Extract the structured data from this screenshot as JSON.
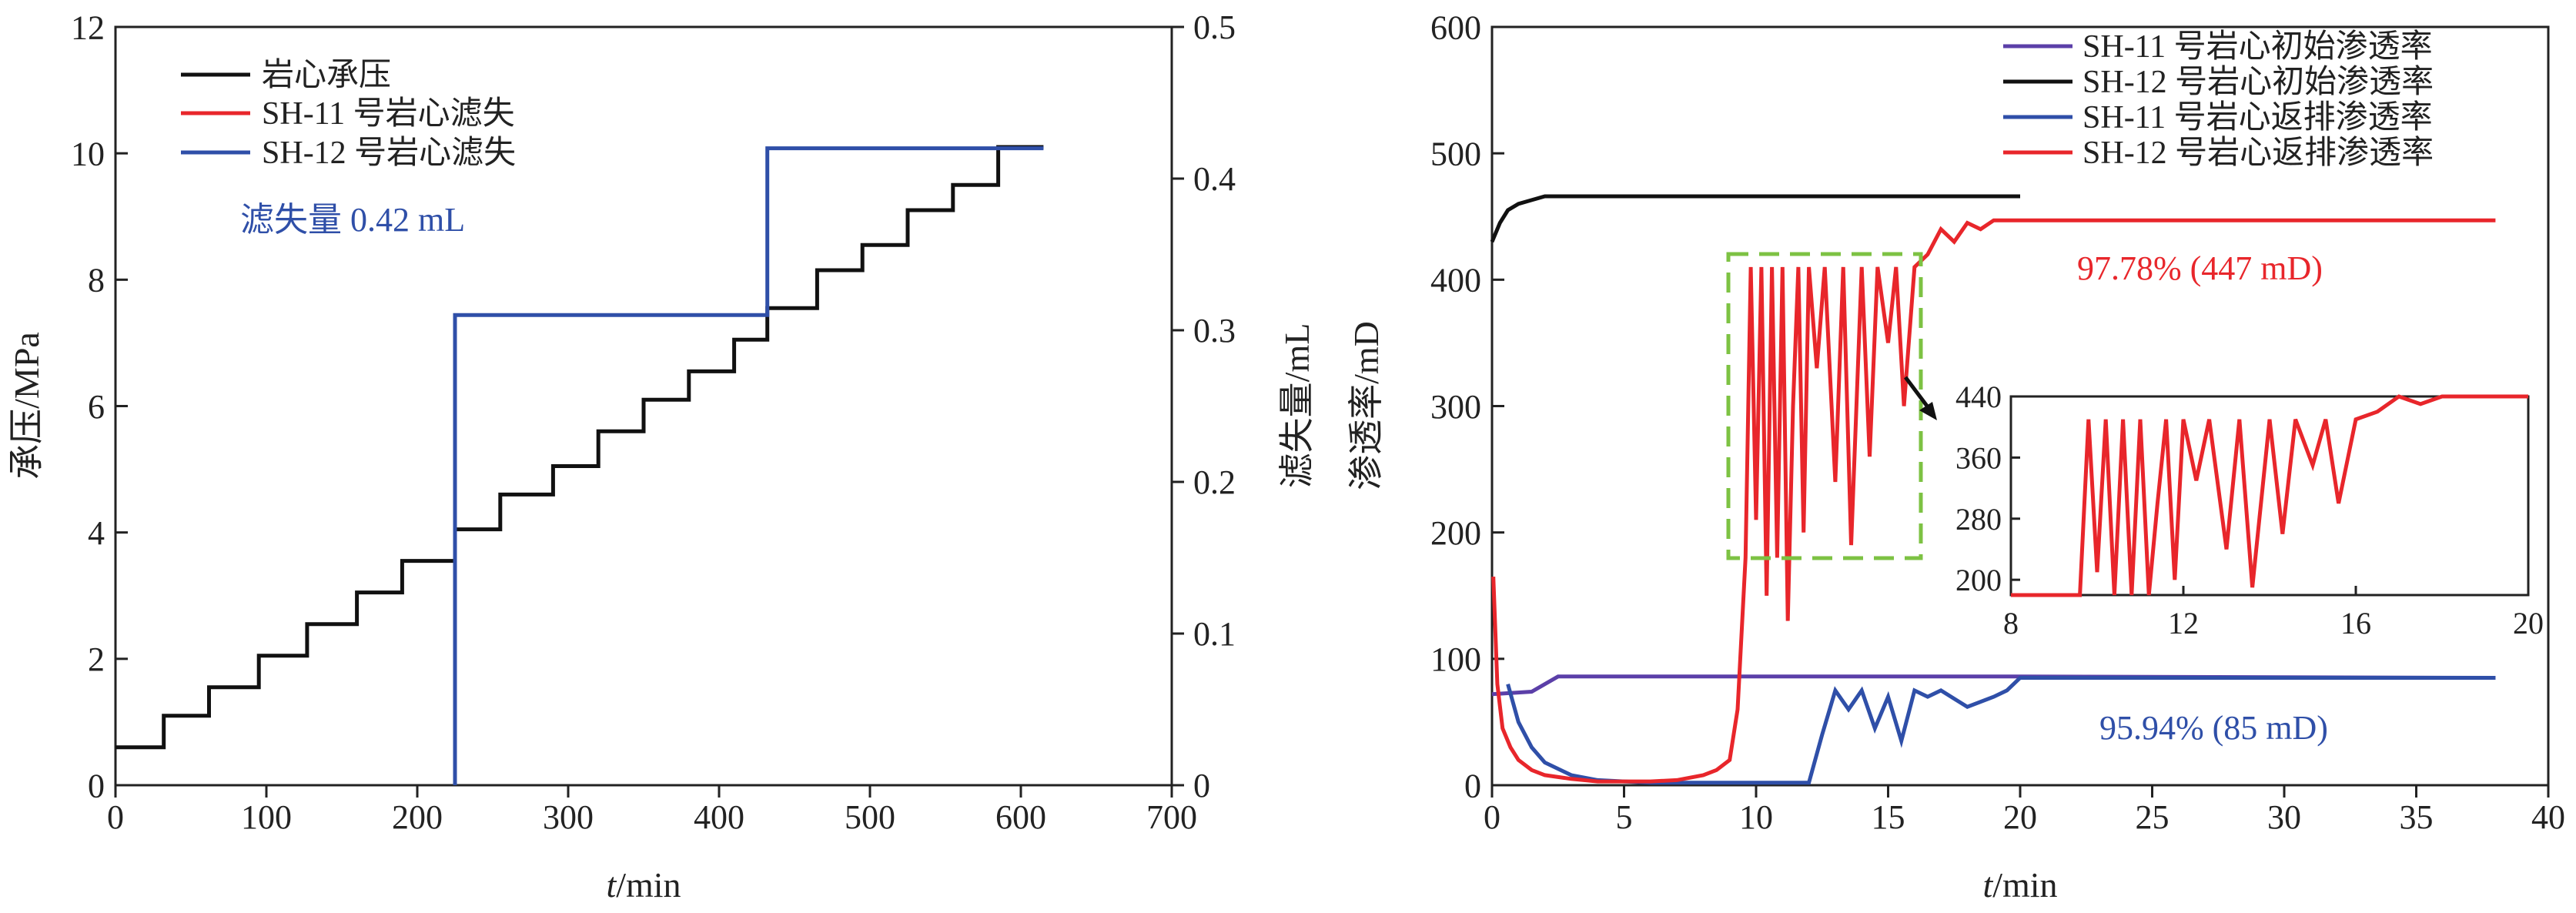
{
  "charts": {
    "left": {
      "type": "line",
      "xlabel_italic": "t",
      "xlabel_unit": "/min",
      "ylabel": "承压/MPa",
      "y2label": "滤失量/mL",
      "xlim": [
        0,
        700
      ],
      "ylim": [
        0,
        12
      ],
      "y2lim": [
        0,
        0.5
      ],
      "x_ticks": [
        "0",
        "100",
        "200",
        "300",
        "400",
        "500",
        "600",
        "700"
      ],
      "y_ticks": [
        "0",
        "2",
        "4",
        "6",
        "8",
        "10",
        "12"
      ],
      "y2_ticks": [
        "0",
        "0.1",
        "0.2",
        "0.3",
        "0.4",
        "0.5"
      ],
      "annotation": "滤失量 0.42 mL",
      "legend": [
        "岩心承压",
        "SH-11 号岩心滤失",
        "SH-12 号岩心滤失"
      ]
    },
    "right": {
      "type": "line",
      "xlabel_italic": "t",
      "xlabel_unit": "/min",
      "ylabel": "渗透率/mD",
      "xlim": [
        0,
        40
      ],
      "ylim": [
        0,
        600
      ],
      "x_ticks": [
        "0",
        "5",
        "10",
        "15",
        "20",
        "25",
        "30",
        "35",
        "40"
      ],
      "y_ticks": [
        "0",
        "100",
        "200",
        "300",
        "400",
        "500",
        "600"
      ],
      "legend": [
        "SH-11 号岩心初始渗透率",
        "SH-12 号岩心初始渗透率",
        "SH-11 号岩心返排渗透率",
        "SH-12 号岩心返排渗透率"
      ],
      "annotation_red": "97.78% (447 mD)",
      "annotation_blue": "95.94% (85 mD)",
      "inset": {
        "xlim": [
          8,
          20
        ],
        "ylim": [
          180,
          440
        ],
        "x_ticks": [
          "8",
          "12",
          "16",
          "20"
        ],
        "y_ticks": [
          "200",
          "280",
          "360",
          "440"
        ]
      }
    }
  },
  "chart_data": [
    {
      "type": "line",
      "xlim": [
        0,
        700
      ],
      "ylim": [
        0,
        12
      ],
      "y2lim": [
        0,
        0.5
      ],
      "series": [
        {
          "name": "岩心承压",
          "color": "#111111",
          "axis": "left",
          "x": [
            0,
            32,
            32,
            62,
            62,
            95,
            95,
            127,
            127,
            160,
            160,
            190,
            190,
            225,
            225,
            255,
            255,
            290,
            290,
            320,
            320,
            350,
            350,
            380,
            380,
            410,
            410,
            432,
            432,
            465,
            465,
            495,
            495,
            525,
            525,
            555,
            555,
            585,
            585,
            615
          ],
          "y": [
            0.6,
            0.6,
            1.1,
            1.1,
            1.55,
            1.55,
            2.05,
            2.05,
            2.55,
            2.55,
            3.05,
            3.05,
            3.55,
            3.55,
            4.05,
            4.05,
            4.6,
            4.6,
            5.05,
            5.05,
            5.6,
            5.6,
            6.1,
            6.1,
            6.55,
            6.55,
            7.05,
            7.05,
            7.55,
            7.55,
            8.15,
            8.15,
            8.55,
            8.55,
            9.1,
            9.1,
            9.5,
            9.5,
            10.1,
            10.1
          ]
        },
        {
          "name": "SH-11 号岩心滤失",
          "color": "#e8262b",
          "axis": "right",
          "x": [],
          "y": []
        },
        {
          "name": "SH-12 号岩心滤失",
          "color": "#2f4fa8",
          "axis": "right",
          "x": [
            225,
            225,
            432,
            432,
            615
          ],
          "y": [
            0,
            0.31,
            0.31,
            0.42,
            0.42
          ]
        }
      ]
    },
    {
      "type": "line",
      "xlim": [
        0,
        40
      ],
      "ylim": [
        0,
        600
      ],
      "series": [
        {
          "name": "SH-11 号岩心初始渗透率",
          "color": "#5b3fa8",
          "x": [
            0,
            1.5,
            2.0,
            2.5,
            5,
            10,
            20,
            38
          ],
          "y": [
            72,
            74,
            80,
            86,
            86,
            86,
            86,
            85
          ]
        },
        {
          "name": "SH-12 号岩心初始渗透率",
          "color": "#111111",
          "x": [
            0,
            0.3,
            0.6,
            1.0,
            1.5,
            2.0,
            5,
            10,
            20
          ],
          "y": [
            430,
            445,
            455,
            460,
            463,
            466,
            466,
            466,
            466
          ]
        },
        {
          "name": "SH-11 号岩心返排渗透率",
          "color": "#2f4fa8",
          "x": [
            0.6,
            1.0,
            1.5,
            2,
            3,
            4,
            5,
            6,
            8,
            10,
            12,
            12.5,
            13,
            13.5,
            14,
            14.5,
            15,
            15.5,
            16,
            16.5,
            17,
            18,
            19,
            19.5,
            20,
            25,
            30,
            38
          ],
          "y": [
            80,
            50,
            30,
            18,
            8,
            4,
            3,
            2,
            2,
            2,
            2,
            40,
            75,
            60,
            75,
            45,
            70,
            35,
            75,
            70,
            75,
            62,
            70,
            75,
            85,
            85,
            85,
            85
          ]
        },
        {
          "name": "SH-12 号岩心返排渗透率",
          "color": "#e8262b",
          "x": [
            0.05,
            0.2,
            0.4,
            0.7,
            1.0,
            1.5,
            2,
            3,
            4,
            5,
            6,
            7,
            8,
            8.5,
            9,
            9.3,
            9.6,
            9.8,
            10.0,
            10.2,
            10.4,
            10.6,
            10.8,
            11.0,
            11.2,
            11.4,
            11.6,
            11.8,
            12.0,
            12.3,
            12.6,
            13.0,
            13.3,
            13.6,
            14.0,
            14.3,
            14.6,
            15.0,
            15.3,
            15.6,
            16.0,
            16.5,
            17.0,
            17.5,
            18.0,
            18.5,
            19.0,
            19.5,
            20,
            25,
            30,
            38
          ],
          "y": [
            165,
            80,
            45,
            30,
            20,
            12,
            8,
            5,
            3,
            3,
            3,
            4,
            8,
            12,
            20,
            60,
            180,
            410,
            210,
            410,
            150,
            410,
            180,
            410,
            130,
            300,
            410,
            200,
            410,
            330,
            410,
            240,
            410,
            190,
            410,
            260,
            410,
            350,
            410,
            300,
            410,
            420,
            440,
            430,
            445,
            440,
            447,
            447,
            447,
            447,
            447,
            447
          ]
        }
      ]
    }
  ]
}
